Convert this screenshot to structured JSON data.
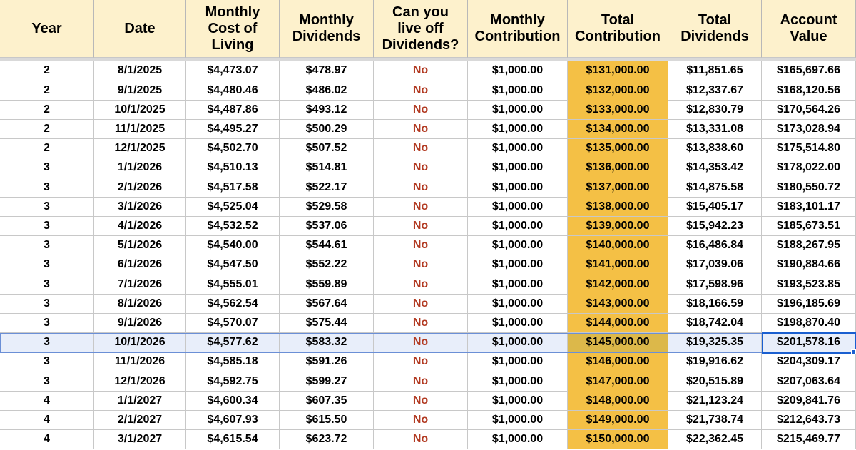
{
  "table": {
    "headers": [
      [
        "Year"
      ],
      [
        "Date"
      ],
      [
        "Monthly",
        "Cost of",
        "Living"
      ],
      [
        "Monthly",
        "Dividends"
      ],
      [
        "Can you",
        "live off",
        "Dividends?"
      ],
      [
        "Monthly",
        "Contribution"
      ],
      [
        "Total",
        "Contribution"
      ],
      [
        "Total",
        "Dividends"
      ],
      [
        "Account",
        "Value"
      ]
    ],
    "rows": [
      [
        "2",
        "8/1/2025",
        "$4,473.07",
        "$478.97",
        "No",
        "$1,000.00",
        "$131,000.00",
        "$11,851.65",
        "$165,697.66"
      ],
      [
        "2",
        "9/1/2025",
        "$4,480.46",
        "$486.02",
        "No",
        "$1,000.00",
        "$132,000.00",
        "$12,337.67",
        "$168,120.56"
      ],
      [
        "2",
        "10/1/2025",
        "$4,487.86",
        "$493.12",
        "No",
        "$1,000.00",
        "$133,000.00",
        "$12,830.79",
        "$170,564.26"
      ],
      [
        "2",
        "11/1/2025",
        "$4,495.27",
        "$500.29",
        "No",
        "$1,000.00",
        "$134,000.00",
        "$13,331.08",
        "$173,028.94"
      ],
      [
        "2",
        "12/1/2025",
        "$4,502.70",
        "$507.52",
        "No",
        "$1,000.00",
        "$135,000.00",
        "$13,838.60",
        "$175,514.80"
      ],
      [
        "3",
        "1/1/2026",
        "$4,510.13",
        "$514.81",
        "No",
        "$1,000.00",
        "$136,000.00",
        "$14,353.42",
        "$178,022.00"
      ],
      [
        "3",
        "2/1/2026",
        "$4,517.58",
        "$522.17",
        "No",
        "$1,000.00",
        "$137,000.00",
        "$14,875.58",
        "$180,550.72"
      ],
      [
        "3",
        "3/1/2026",
        "$4,525.04",
        "$529.58",
        "No",
        "$1,000.00",
        "$138,000.00",
        "$15,405.17",
        "$183,101.17"
      ],
      [
        "3",
        "4/1/2026",
        "$4,532.52",
        "$537.06",
        "No",
        "$1,000.00",
        "$139,000.00",
        "$15,942.23",
        "$185,673.51"
      ],
      [
        "3",
        "5/1/2026",
        "$4,540.00",
        "$544.61",
        "No",
        "$1,000.00",
        "$140,000.00",
        "$16,486.84",
        "$188,267.95"
      ],
      [
        "3",
        "6/1/2026",
        "$4,547.50",
        "$552.22",
        "No",
        "$1,000.00",
        "$141,000.00",
        "$17,039.06",
        "$190,884.66"
      ],
      [
        "3",
        "7/1/2026",
        "$4,555.01",
        "$559.89",
        "No",
        "$1,000.00",
        "$142,000.00",
        "$17,598.96",
        "$193,523.85"
      ],
      [
        "3",
        "8/1/2026",
        "$4,562.54",
        "$567.64",
        "No",
        "$1,000.00",
        "$143,000.00",
        "$18,166.59",
        "$196,185.69"
      ],
      [
        "3",
        "9/1/2026",
        "$4,570.07",
        "$575.44",
        "No",
        "$1,000.00",
        "$144,000.00",
        "$18,742.04",
        "$198,870.40"
      ],
      [
        "3",
        "10/1/2026",
        "$4,577.62",
        "$583.32",
        "No",
        "$1,000.00",
        "$145,000.00",
        "$19,325.35",
        "$201,578.16"
      ],
      [
        "3",
        "11/1/2026",
        "$4,585.18",
        "$591.26",
        "No",
        "$1,000.00",
        "$146,000.00",
        "$19,916.62",
        "$204,309.17"
      ],
      [
        "3",
        "12/1/2026",
        "$4,592.75",
        "$599.27",
        "No",
        "$1,000.00",
        "$147,000.00",
        "$20,515.89",
        "$207,063.64"
      ],
      [
        "4",
        "1/1/2027",
        "$4,600.34",
        "$607.35",
        "No",
        "$1,000.00",
        "$148,000.00",
        "$21,123.24",
        "$209,841.76"
      ],
      [
        "4",
        "2/1/2027",
        "$4,607.93",
        "$615.50",
        "No",
        "$1,000.00",
        "$149,000.00",
        "$21,738.74",
        "$212,643.73"
      ],
      [
        "4",
        "3/1/2027",
        "$4,615.54",
        "$623.72",
        "No",
        "$1,000.00",
        "$150,000.00",
        "$22,362.45",
        "$215,469.77"
      ]
    ]
  }
}
